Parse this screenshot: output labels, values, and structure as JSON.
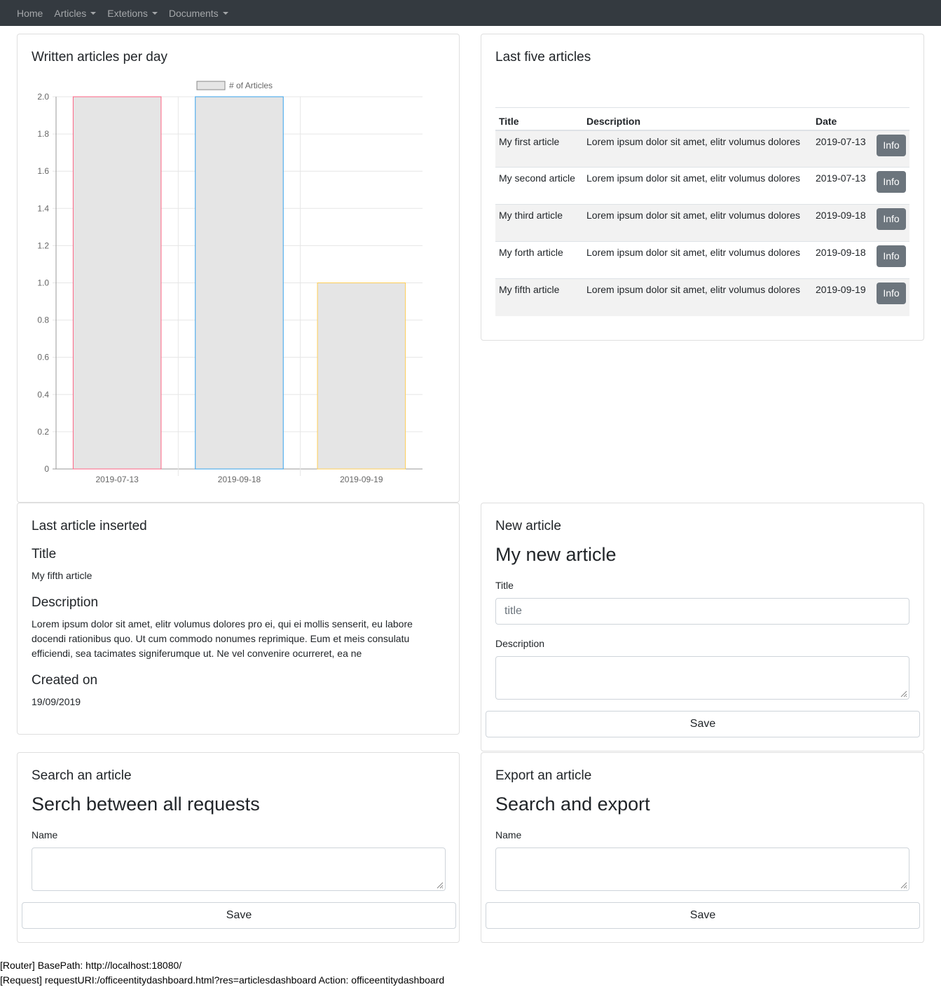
{
  "navbar": {
    "items": [
      {
        "label": "Home",
        "dropdown": false
      },
      {
        "label": "Articles",
        "dropdown": true
      },
      {
        "label": "Extetions",
        "dropdown": true
      },
      {
        "label": "Documents",
        "dropdown": true
      }
    ]
  },
  "chart_card": {
    "title": "Written articles per day"
  },
  "chart_data": {
    "type": "bar",
    "legend": "# of Articles",
    "categories": [
      "2019-07-13",
      "2019-09-18",
      "2019-09-19"
    ],
    "values": [
      2,
      2,
      1
    ],
    "bar_border_colors": [
      "#ff6384",
      "#36a2eb",
      "#ffce56"
    ],
    "bar_fill": "#e5e5e5",
    "ylim": [
      0,
      2
    ],
    "yticks": [
      "0",
      "0.2",
      "0.4",
      "0.6",
      "0.8",
      "1.0",
      "1.2",
      "1.4",
      "1.6",
      "1.8",
      "2.0"
    ],
    "grid": true,
    "legend_position": "top"
  },
  "last_five": {
    "title": "Last five articles",
    "headers": {
      "title": "Title",
      "description": "Description",
      "date": "Date"
    },
    "info_label": "Info",
    "rows": [
      {
        "title": "My first article",
        "description": "Lorem ipsum dolor sit amet, elitr volumus dolores",
        "date": "2019-07-13"
      },
      {
        "title": "My second article",
        "description": "Lorem ipsum dolor sit amet, elitr volumus dolores",
        "date": "2019-07-13"
      },
      {
        "title": "My third article",
        "description": "Lorem ipsum dolor sit amet, elitr volumus dolores",
        "date": "2019-09-18"
      },
      {
        "title": "My forth article",
        "description": "Lorem ipsum dolor sit amet, elitr volumus dolores",
        "date": "2019-09-18"
      },
      {
        "title": "My fifth article",
        "description": "Lorem ipsum dolor sit amet, elitr volumus dolores",
        "date": "2019-09-19"
      }
    ]
  },
  "last_inserted": {
    "title": "Last article inserted",
    "title_label": "Title",
    "title_value": "My fifth article",
    "description_label": "Description",
    "description_value": "Lorem ipsum dolor sit amet, elitr volumus dolores pro ei, qui ei mollis senserit, eu labore docendi rationibus quo. Ut cum commodo nonumes reprimique. Eum et meis consulatu efficiendi, sea tacimates signiferumque ut. Ne vel convenire ocurreret, ea ne",
    "created_label": "Created on",
    "created_value": "19/09/2019"
  },
  "new_article": {
    "title": "New article",
    "heading": "My new article",
    "title_label": "Title",
    "title_placeholder": "title",
    "title_value": "",
    "description_label": "Description",
    "description_value": "",
    "save_label": "Save"
  },
  "search_article": {
    "title": "Search an article",
    "heading": "Serch between all requests",
    "name_label": "Name",
    "name_value": "",
    "save_label": "Save"
  },
  "export_article": {
    "title": "Export an article",
    "heading": "Search and export",
    "name_label": "Name",
    "name_value": "",
    "save_label": "Save"
  },
  "footer": {
    "router_line": "[Router] BasePath: http://localhost:18080/",
    "request_line": "[Request] requestURI:/officeentitydashboard.html?res=articlesdashboard Action: officeentitydashboard"
  }
}
